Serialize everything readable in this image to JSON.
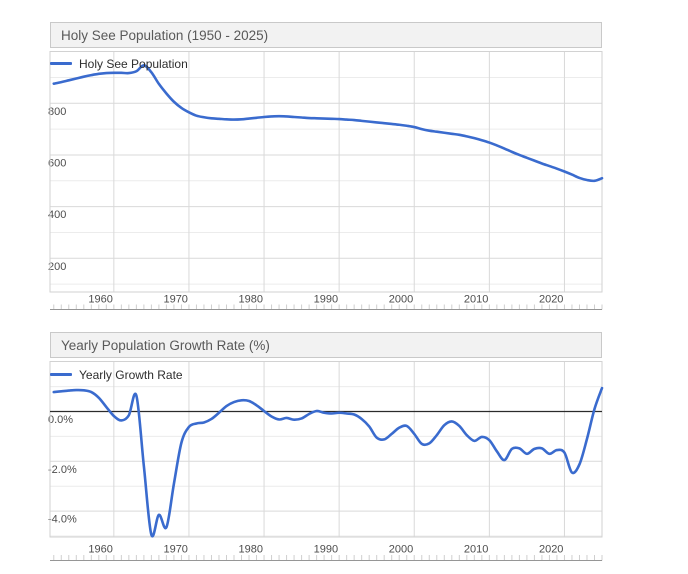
{
  "page": {
    "background": "#ffffff",
    "colors": {
      "header_bg": "#f2f2f2",
      "header_border": "#c9c9c9",
      "header_text": "#595959",
      "axis_label": "#4d4d4d",
      "grid_major": "#d9d9d9",
      "grid_minor": "#ececec",
      "plot_border": "#d2d2d2",
      "zero_line": "#2b2b2b",
      "year_tick": "#cfcfcf",
      "tick_baseline": "#969696",
      "series_blue": "#3a6bce"
    }
  },
  "chart_data": [
    {
      "type": "line",
      "title": "Holy See Population (1950 - 2025)",
      "legend_label": "Holy See Population",
      "legend_position": "top-left",
      "line_color": "#3a6bce",
      "grid": true,
      "x_range": [
        1951.5,
        2025
      ],
      "x_tick_labels": [
        "1960",
        "1970",
        "1980",
        "1990",
        "2000",
        "2010",
        "2020"
      ],
      "x_tick_years": [
        1960,
        1970,
        1980,
        1990,
        2000,
        2010,
        2020
      ],
      "minor_x_ticks": "yearly",
      "y_axis": {
        "tick_labels": [
          "200",
          "400",
          "600",
          "800"
        ],
        "tick_values": [
          200,
          400,
          600,
          800
        ],
        "minor_values": [
          100,
          300,
          500,
          700,
          900
        ],
        "range": [
          70,
          1000
        ]
      },
      "zero_line": false,
      "series": [
        {
          "name": "Holy See Population",
          "years": [
            1952,
            1953,
            1954,
            1955,
            1956,
            1957,
            1958,
            1959,
            1960,
            1961,
            1962,
            1963,
            1964,
            1965,
            1966,
            1967,
            1968,
            1969,
            1970,
            1971,
            1972,
            1973,
            1974,
            1975,
            1976,
            1977,
            1978,
            1979,
            1980,
            1981,
            1982,
            1983,
            1984,
            1985,
            1986,
            1987,
            1988,
            1989,
            1990,
            1991,
            1992,
            1993,
            1994,
            1995,
            1996,
            1997,
            1998,
            1999,
            2000,
            2001,
            2002,
            2003,
            2004,
            2005,
            2006,
            2007,
            2008,
            2009,
            2010,
            2011,
            2012,
            2013,
            2014,
            2015,
            2016,
            2017,
            2018,
            2019,
            2020,
            2021,
            2022,
            2023,
            2024,
            2025
          ],
          "values": [
            876,
            882,
            889,
            896,
            903,
            909,
            914,
            917,
            918,
            918,
            917,
            924,
            947,
            920,
            875,
            838,
            806,
            782,
            765,
            752,
            746,
            742,
            740,
            738,
            737,
            738,
            741,
            744,
            747,
            749,
            750,
            749,
            747,
            745,
            743,
            742,
            741,
            740,
            739,
            737,
            735,
            732,
            729,
            726,
            723,
            720,
            717,
            713,
            708,
            700,
            694,
            690,
            686,
            682,
            678,
            672,
            665,
            657,
            648,
            637,
            625,
            612,
            600,
            589,
            578,
            567,
            557,
            547,
            536,
            524,
            511,
            503,
            500,
            510
          ]
        }
      ]
    },
    {
      "type": "line",
      "title": "Yearly Population Growth Rate (%)",
      "legend_label": "Yearly Growth Rate",
      "legend_position": "top-left",
      "line_color": "#3a6bce",
      "grid": true,
      "x_range": [
        1951.5,
        2025
      ],
      "x_tick_labels": [
        "1960",
        "1970",
        "1980",
        "1990",
        "2000",
        "2010",
        "2020"
      ],
      "x_tick_years": [
        1960,
        1970,
        1980,
        1990,
        2000,
        2010,
        2020
      ],
      "minor_x_ticks": "yearly",
      "y_axis": {
        "tick_labels": [
          "0.0%",
          "-2.0%",
          "-4.0%"
        ],
        "tick_values": [
          0,
          -2,
          -4
        ],
        "minor_values": [
          1,
          -1,
          -3,
          -5
        ],
        "range": [
          -5,
          2
        ]
      },
      "zero_line": true,
      "series": [
        {
          "name": "Yearly Growth Rate",
          "years": [
            1952,
            1953,
            1954,
            1955,
            1956,
            1957,
            1958,
            1959,
            1960,
            1961,
            1962,
            1963,
            1964,
            1965,
            1966,
            1967,
            1968,
            1969,
            1970,
            1971,
            1972,
            1973,
            1974,
            1975,
            1976,
            1977,
            1978,
            1979,
            1980,
            1981,
            1982,
            1983,
            1984,
            1985,
            1986,
            1987,
            1988,
            1989,
            1990,
            1991,
            1992,
            1993,
            1994,
            1995,
            1996,
            1997,
            1998,
            1999,
            2000,
            2001,
            2002,
            2003,
            2004,
            2005,
            2006,
            2007,
            2008,
            2009,
            2010,
            2011,
            2012,
            2013,
            2014,
            2015,
            2016,
            2017,
            2018,
            2019,
            2020,
            2021,
            2022,
            2023,
            2024,
            2025
          ],
          "values": [
            0.78,
            0.81,
            0.84,
            0.86,
            0.85,
            0.78,
            0.55,
            0.18,
            -0.18,
            -0.36,
            -0.15,
            0.64,
            -2.2,
            -4.95,
            -4.15,
            -4.65,
            -2.9,
            -1.25,
            -0.62,
            -0.48,
            -0.44,
            -0.3,
            -0.05,
            0.22,
            0.38,
            0.45,
            0.42,
            0.25,
            0.02,
            -0.2,
            -0.32,
            -0.26,
            -0.33,
            -0.28,
            -0.1,
            0.02,
            -0.05,
            -0.08,
            -0.05,
            -0.08,
            -0.12,
            -0.3,
            -0.6,
            -1.05,
            -1.12,
            -0.9,
            -0.65,
            -0.58,
            -0.9,
            -1.3,
            -1.28,
            -0.95,
            -0.55,
            -0.4,
            -0.58,
            -0.95,
            -1.18,
            -1.02,
            -1.15,
            -1.6,
            -1.95,
            -1.5,
            -1.48,
            -1.7,
            -1.5,
            -1.48,
            -1.7,
            -1.55,
            -1.65,
            -2.45,
            -2.12,
            -1.1,
            0.1,
            0.94
          ]
        }
      ]
    }
  ]
}
